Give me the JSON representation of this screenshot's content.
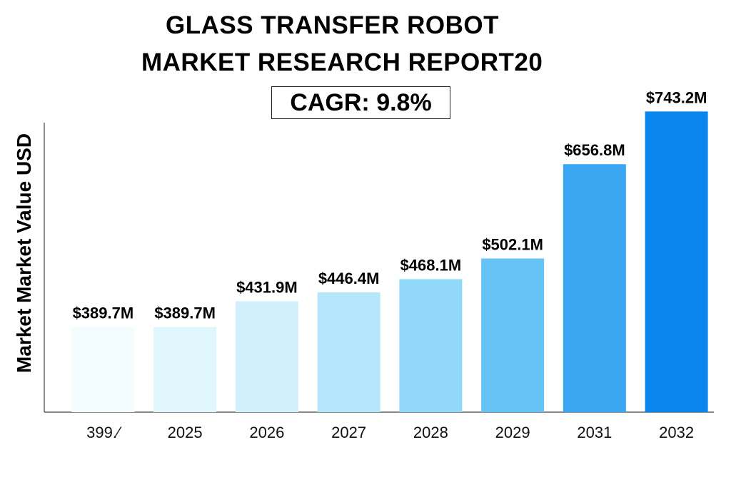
{
  "chart_data": {
    "type": "bar",
    "title": "GLASS TRANSFER ROBOT MARKET RESEARCH REPORT20",
    "title_lines": [
      "GLASS TRANSFER ROBOT",
      "MARKET RESEARCH REPORT20"
    ],
    "subtitle": "CAGR: 9.8%",
    "ylabel": "Market Market Value USD",
    "xlabel": "",
    "categories": [
      "399.⁄",
      "2025",
      "2026",
      "2027",
      "2028",
      "2029",
      "2031",
      "2032"
    ],
    "values": [
      389.7,
      389.7,
      431.9,
      446.4,
      468.1,
      502.1,
      656.8,
      743.2
    ],
    "data_labels": [
      "$389.7M",
      "$389.7M",
      "$431.9M",
      "$446.4M",
      "$468.1M",
      "$502.1M",
      "$656.8M",
      "$743.2M"
    ],
    "unit": "USD Million",
    "ylim": [
      250,
      760
    ],
    "grid": false,
    "legend": "none",
    "colors": {
      "bar_gradient": [
        "#f3fcff",
        "#e0f6fd",
        "#d2f0fc",
        "#b6e6fb",
        "#91d7f9",
        "#67c3f5",
        "#3ba7f2",
        "#0a85ee"
      ],
      "axis": "#444444",
      "text": "#000000"
    }
  }
}
